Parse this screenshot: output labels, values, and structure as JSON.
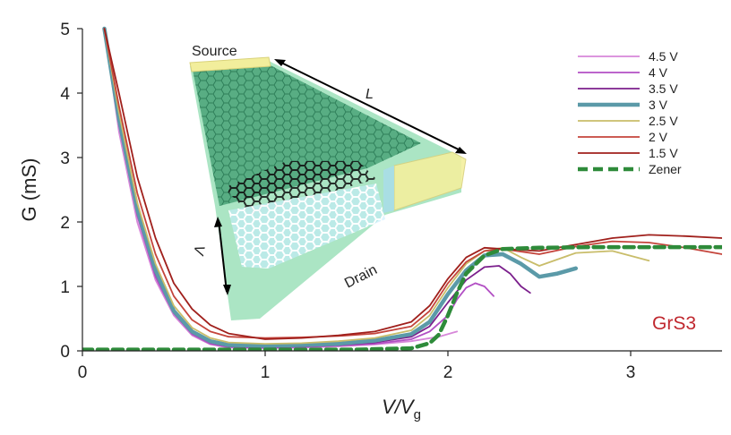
{
  "chart_data": {
    "type": "line",
    "xlabel": "V/V",
    "xlabel_sub": "g",
    "ylabel": "G (mS)",
    "xlim": [
      0,
      3.5
    ],
    "ylim": [
      0,
      5
    ],
    "x_ticks": [
      0,
      1,
      2,
      3
    ],
    "y_ticks": [
      0,
      1,
      2,
      3,
      4,
      5
    ],
    "grid": false,
    "legend_position": "top-right",
    "annotation": "GrS3",
    "annotation_color": "#c0282f",
    "inset": {
      "source_label": "Source",
      "drain_label": "Drain",
      "length_label": "L",
      "width_label": "Λ"
    },
    "series": [
      {
        "name": "4.5 V",
        "color": "#d787d9",
        "style": "solid",
        "x": [
          0.12,
          0.2,
          0.3,
          0.4,
          0.5,
          0.6,
          0.7,
          0.8,
          1.0,
          1.2,
          1.4,
          1.6,
          1.8,
          1.95,
          2.05
        ],
        "y": [
          5.0,
          3.4,
          2.0,
          1.1,
          0.55,
          0.24,
          0.1,
          0.05,
          0.04,
          0.05,
          0.07,
          0.1,
          0.15,
          0.22,
          0.3
        ]
      },
      {
        "name": "4 V",
        "color": "#b24fc4",
        "style": "solid",
        "x": [
          0.12,
          0.2,
          0.3,
          0.4,
          0.5,
          0.6,
          0.7,
          0.8,
          1.0,
          1.2,
          1.4,
          1.6,
          1.8,
          1.9,
          2.0,
          2.05,
          2.1,
          2.15,
          2.2,
          2.25
        ],
        "y": [
          5.0,
          3.5,
          2.1,
          1.15,
          0.58,
          0.26,
          0.11,
          0.06,
          0.05,
          0.06,
          0.08,
          0.11,
          0.18,
          0.3,
          0.55,
          0.8,
          0.98,
          1.05,
          1.0,
          0.85
        ]
      },
      {
        "name": "3.5 V",
        "color": "#7b1f8c",
        "style": "solid",
        "x": [
          0.12,
          0.2,
          0.3,
          0.4,
          0.5,
          0.6,
          0.7,
          0.8,
          1.0,
          1.2,
          1.4,
          1.6,
          1.8,
          1.9,
          2.0,
          2.1,
          2.2,
          2.28,
          2.34,
          2.4,
          2.45
        ],
        "y": [
          5.0,
          3.55,
          2.15,
          1.2,
          0.6,
          0.28,
          0.13,
          0.07,
          0.06,
          0.07,
          0.09,
          0.13,
          0.22,
          0.38,
          0.75,
          1.1,
          1.3,
          1.32,
          1.2,
          1.0,
          0.9
        ]
      },
      {
        "name": "3 V",
        "color": "#5b9aa8",
        "style": "thick",
        "x": [
          0.12,
          0.2,
          0.3,
          0.4,
          0.5,
          0.6,
          0.7,
          0.8,
          1.0,
          1.2,
          1.4,
          1.6,
          1.8,
          1.9,
          2.0,
          2.1,
          2.2,
          2.3,
          2.4,
          2.5,
          2.6,
          2.7
        ],
        "y": [
          5.0,
          3.6,
          2.2,
          1.25,
          0.62,
          0.3,
          0.15,
          0.09,
          0.08,
          0.09,
          0.11,
          0.16,
          0.26,
          0.45,
          0.88,
          1.25,
          1.48,
          1.5,
          1.35,
          1.15,
          1.2,
          1.28
        ]
      },
      {
        "name": "2.5 V",
        "color": "#c9bd6a",
        "style": "solid",
        "x": [
          0.12,
          0.2,
          0.3,
          0.4,
          0.5,
          0.6,
          0.7,
          0.8,
          1.0,
          1.2,
          1.4,
          1.6,
          1.8,
          1.9,
          2.0,
          2.1,
          2.2,
          2.3,
          2.4,
          2.5,
          2.7,
          2.9,
          3.1
        ],
        "y": [
          5.0,
          3.7,
          2.3,
          1.35,
          0.7,
          0.36,
          0.2,
          0.13,
          0.11,
          0.12,
          0.15,
          0.2,
          0.32,
          0.55,
          0.98,
          1.35,
          1.55,
          1.6,
          1.45,
          1.32,
          1.52,
          1.55,
          1.4
        ]
      },
      {
        "name": "2 V",
        "color": "#c4443b",
        "style": "solid",
        "x": [
          0.12,
          0.2,
          0.3,
          0.4,
          0.5,
          0.6,
          0.7,
          0.8,
          1.0,
          1.2,
          1.4,
          1.6,
          1.8,
          1.9,
          2.0,
          2.1,
          2.2,
          2.3,
          2.5,
          2.7,
          2.9,
          3.1,
          3.3,
          3.5
        ],
        "y": [
          5.0,
          3.8,
          2.45,
          1.5,
          0.85,
          0.48,
          0.3,
          0.22,
          0.2,
          0.21,
          0.23,
          0.27,
          0.38,
          0.62,
          1.05,
          1.38,
          1.55,
          1.58,
          1.5,
          1.62,
          1.7,
          1.68,
          1.6,
          1.5
        ]
      },
      {
        "name": "1.5 V",
        "color": "#a0201c",
        "style": "solid",
        "x": [
          0.12,
          0.2,
          0.3,
          0.4,
          0.5,
          0.6,
          0.7,
          0.8,
          1.0,
          1.2,
          1.4,
          1.6,
          1.8,
          1.9,
          2.0,
          2.1,
          2.2,
          2.3,
          2.5,
          2.7,
          2.9,
          3.1,
          3.3,
          3.5
        ],
        "y": [
          5.0,
          4.0,
          2.7,
          1.75,
          1.05,
          0.65,
          0.4,
          0.27,
          0.18,
          0.2,
          0.24,
          0.3,
          0.45,
          0.7,
          1.12,
          1.45,
          1.6,
          1.58,
          1.55,
          1.65,
          1.75,
          1.8,
          1.78,
          1.75
        ]
      },
      {
        "name": "Zener",
        "color": "#2e8b3a",
        "style": "dashed",
        "x": [
          0,
          0.5,
          1.0,
          1.5,
          1.8,
          1.9,
          1.95,
          2.0,
          2.05,
          2.1,
          2.2,
          2.3,
          2.5,
          2.8,
          3.0,
          3.2,
          3.5
        ],
        "y": [
          0.02,
          0.02,
          0.02,
          0.02,
          0.04,
          0.12,
          0.25,
          0.55,
          0.9,
          1.2,
          1.48,
          1.58,
          1.6,
          1.61,
          1.61,
          1.61,
          1.61
        ]
      }
    ]
  }
}
